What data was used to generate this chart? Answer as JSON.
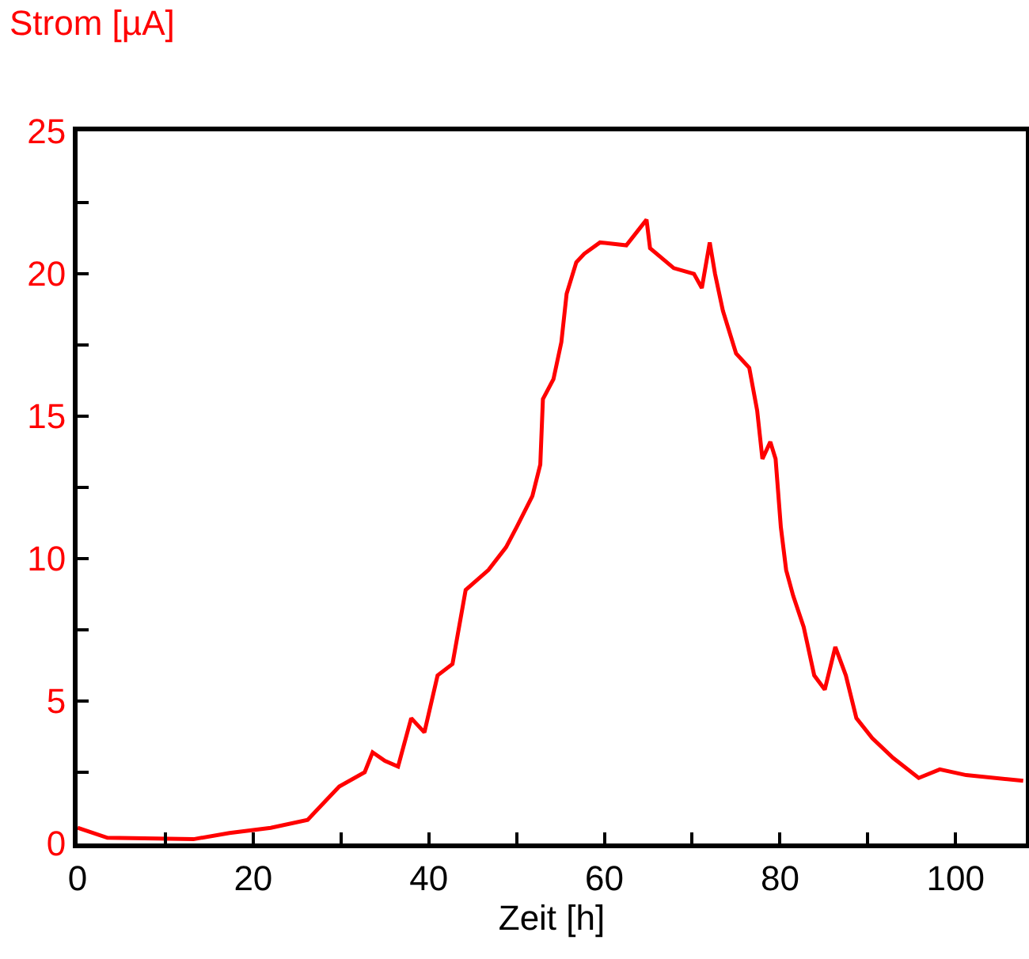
{
  "chart_data": {
    "type": "line",
    "xlabel": "Zeit [h]",
    "ylabel": "Strom [µA]",
    "x": [
      0,
      3.4,
      13.2,
      17.3,
      22,
      26.2,
      29.8,
      32.7,
      33.6,
      35,
      36.5,
      38,
      39.5,
      41,
      42.7,
      44.2,
      46.8,
      48.8,
      50,
      51.8,
      52.7,
      53,
      54.2,
      55.1,
      55.7,
      56.8,
      57.7,
      59.5,
      62.5,
      64.8,
      65.2,
      67.9,
      70.2,
      71.1,
      72,
      72.6,
      73.5,
      75,
      76.5,
      77.4,
      78,
      78.9,
      79.5,
      80.1,
      80.7,
      81.5,
      82.7,
      83.9,
      85.1,
      86.3,
      87.5,
      88.7,
      90.5,
      92.9,
      95.8,
      98.2,
      101.2,
      107.7
    ],
    "series": [
      {
        "color": "#ff0000",
        "values": [
          0.55,
          0.2,
          0.15,
          0.37,
          0.55,
          0.83,
          2.0,
          2.5,
          3.2,
          2.9,
          2.7,
          4.4,
          3.9,
          5.9,
          6.3,
          8.9,
          9.6,
          10.4,
          11.1,
          12.2,
          13.3,
          15.6,
          16.3,
          17.6,
          19.3,
          20.4,
          20.7,
          21.1,
          21.0,
          21.9,
          20.9,
          20.2,
          20.0,
          19.5,
          21.1,
          20.0,
          18.7,
          17.2,
          16.7,
          15.2,
          13.5,
          14.1,
          13.5,
          11.1,
          9.6,
          8.7,
          7.6,
          5.9,
          5.4,
          6.9,
          5.9,
          4.4,
          3.7,
          3.0,
          2.3,
          2.6,
          2.4,
          2.2
        ]
      }
    ],
    "xlim": [
      0,
      108
    ],
    "xticks": [
      0,
      {
        "value": 10,
        "label": null
      },
      20,
      {
        "value": 30,
        "label": null
      },
      40,
      {
        "value": 50,
        "label": null
      },
      60,
      {
        "value": 70,
        "label": null
      },
      80,
      {
        "value": 90,
        "label": null
      },
      100
    ],
    "ylim": [
      0,
      25
    ],
    "yticks": [
      0,
      {
        "value": 2.5,
        "label": null
      },
      5,
      {
        "value": 7.5,
        "label": null
      },
      10,
      {
        "value": 12.5,
        "label": null
      },
      15,
      {
        "value": 17.5,
        "label": null
      },
      20,
      {
        "value": 22.5,
        "label": null
      },
      25
    ],
    "grid": false,
    "marker": "none",
    "line_style": "solid"
  }
}
